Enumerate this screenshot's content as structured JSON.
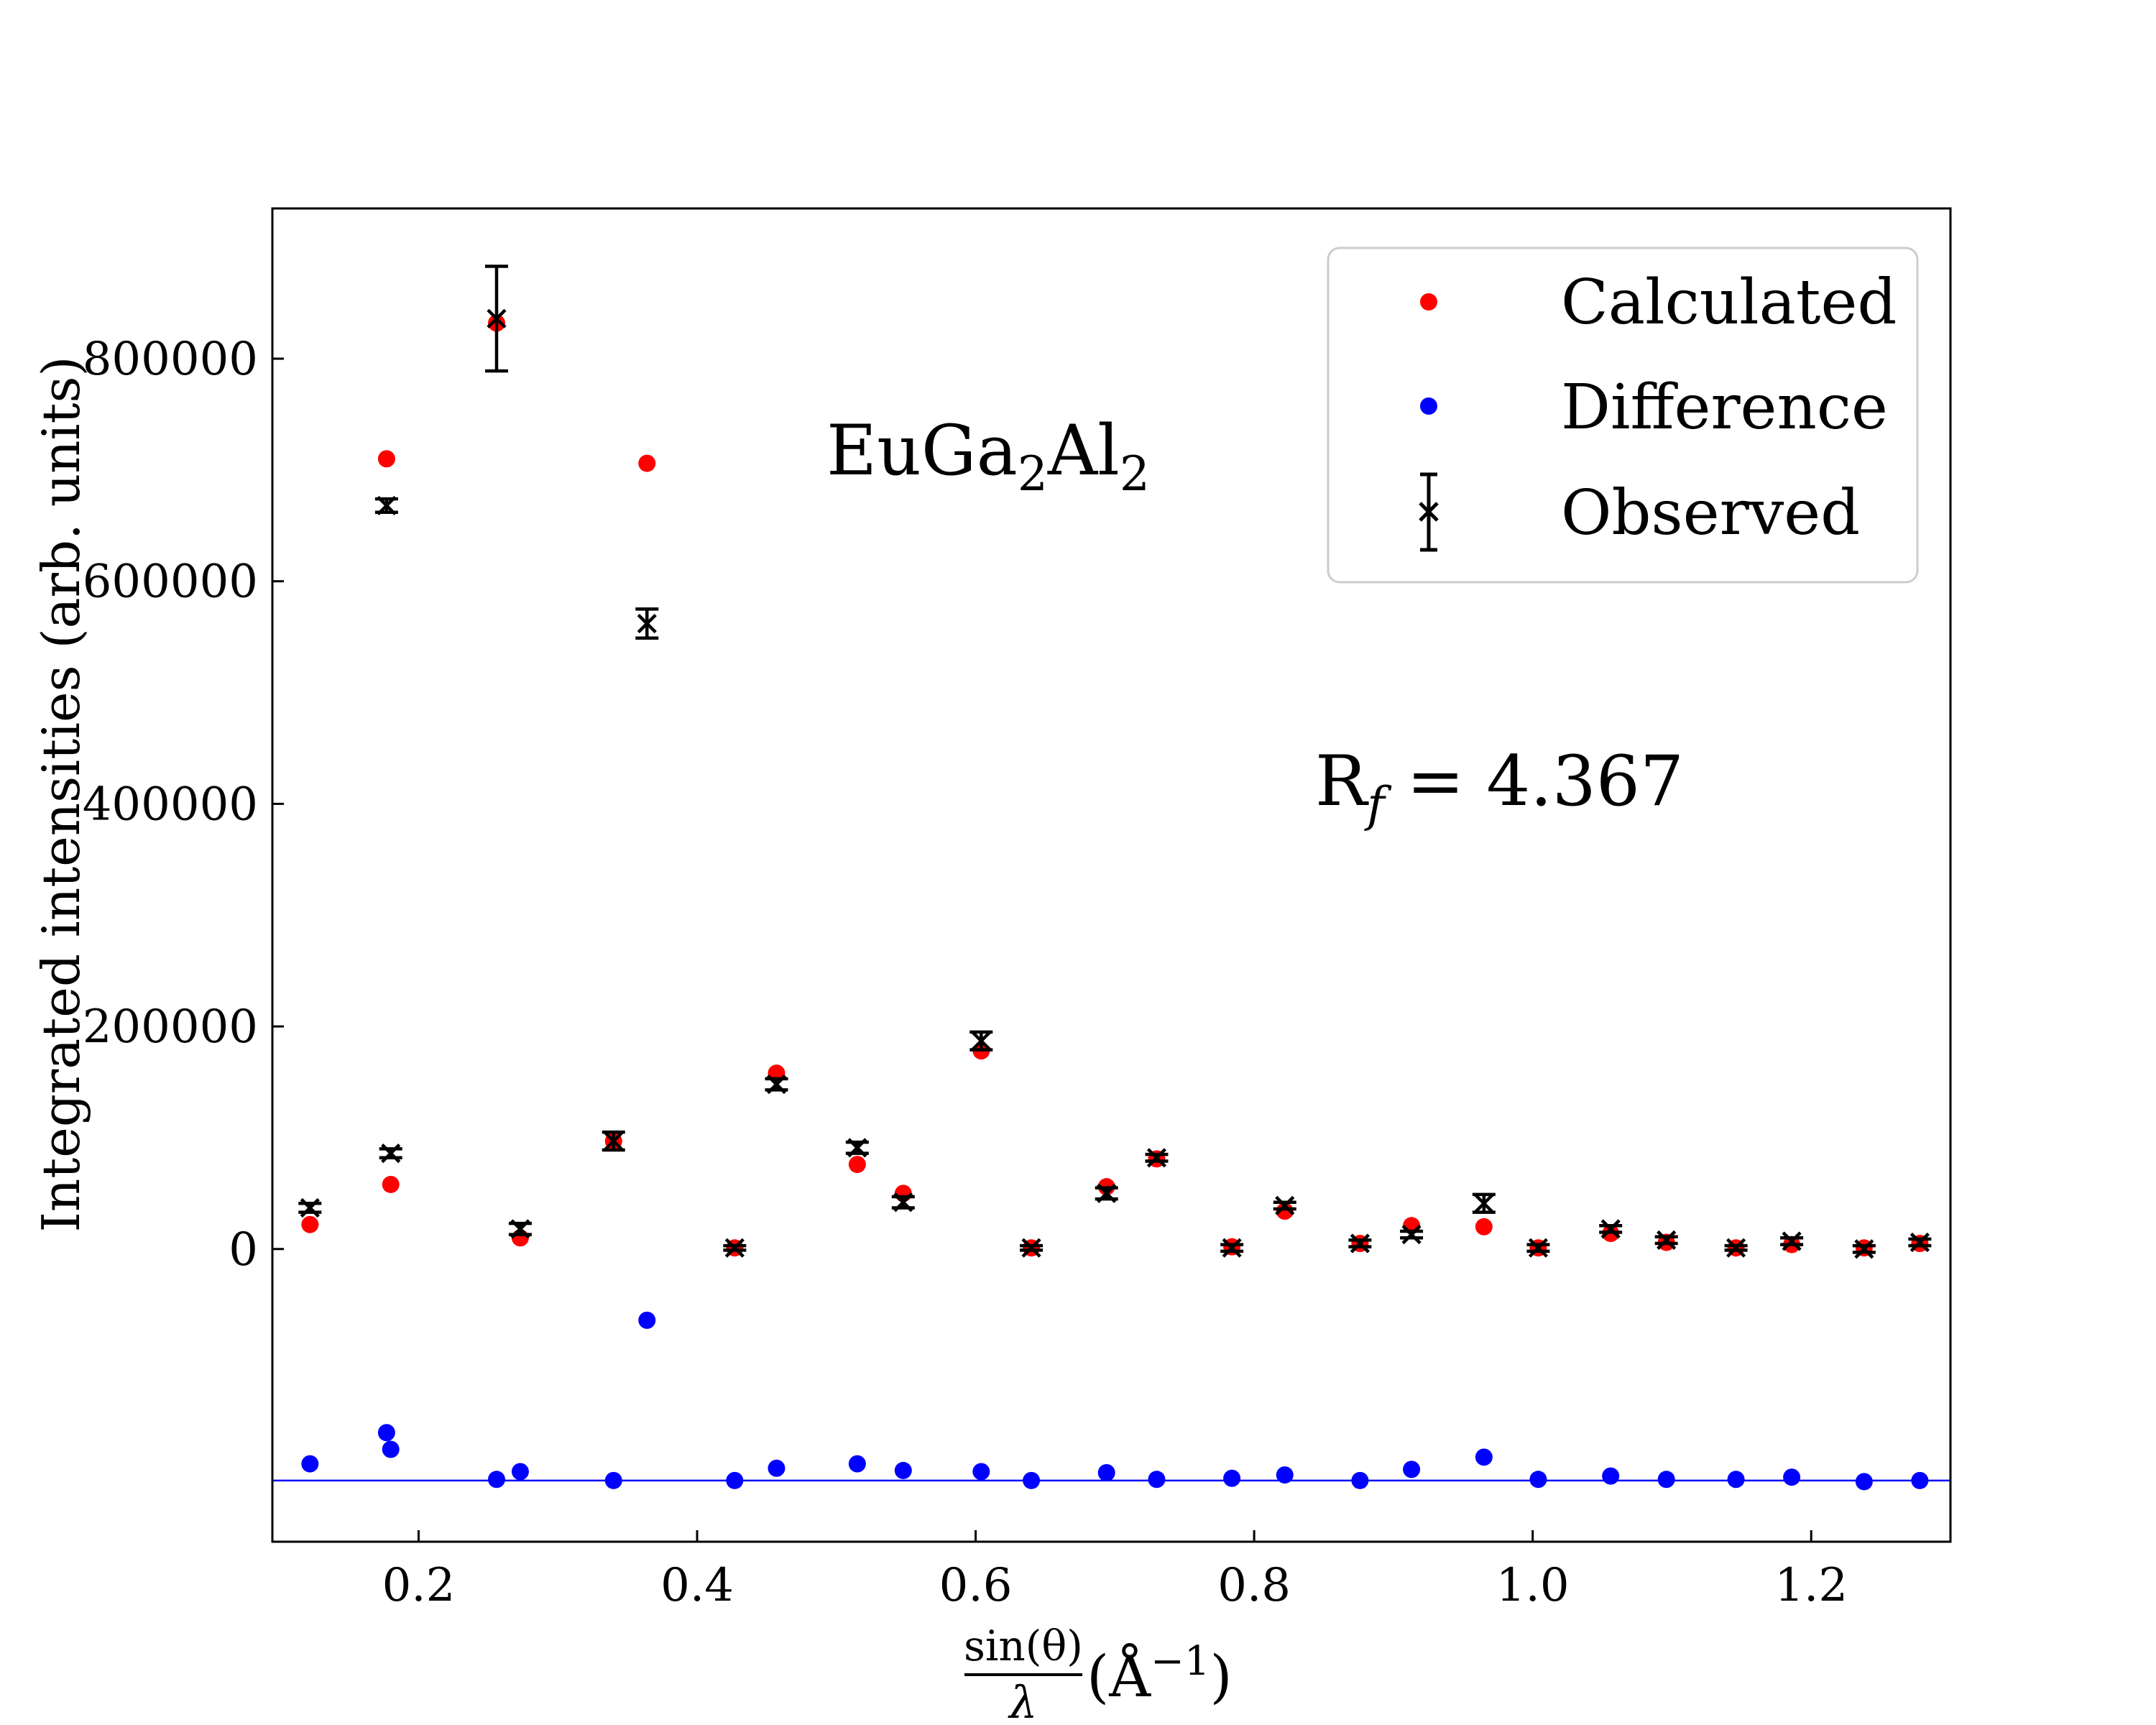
{
  "chart_data": {
    "type": "scatter",
    "title": "",
    "xlabel": {
      "fraction_numerator": "sin(θ)",
      "fraction_denominator": "λ",
      "unit_open": "(Å",
      "unit_exp": "−1",
      "unit_close": ")"
    },
    "ylabel": "Integrated intensities (arb. units)",
    "xlim": [
      0.095,
      1.3
    ],
    "ylim": [
      -263000,
      935000
    ],
    "xticks": [
      0.2,
      0.4,
      0.6,
      0.8,
      1.0,
      1.2
    ],
    "xtick_labels": [
      "0.2",
      "0.4",
      "0.6",
      "0.8",
      "1.0",
      "1.2"
    ],
    "yticks": [
      0,
      200000,
      400000,
      600000,
      800000
    ],
    "ytick_labels": [
      "0",
      "200000",
      "400000",
      "600000",
      "800000"
    ],
    "grid": false,
    "legend_position": "top-right",
    "colors": {
      "calculated": "#ff0000",
      "difference": "#0000ff",
      "observed": "#000000",
      "baseline": "#0000ff"
    },
    "series": [
      {
        "name": "Calculated",
        "marker": "circle",
        "points": [
          [
            0.122,
            22000
          ],
          [
            0.177,
            710000
          ],
          [
            0.18,
            58000
          ],
          [
            0.256,
            832000
          ],
          [
            0.273,
            10000
          ],
          [
            0.34,
            97000
          ],
          [
            0.364,
            706000
          ],
          [
            0.427,
            1000
          ],
          [
            0.457,
            158000
          ],
          [
            0.515,
            76000
          ],
          [
            0.548,
            50000
          ],
          [
            0.604,
            178000
          ],
          [
            0.64,
            1000
          ],
          [
            0.694,
            56000
          ],
          [
            0.73,
            81000
          ],
          [
            0.784,
            2000
          ],
          [
            0.822,
            34000
          ],
          [
            0.876,
            5000
          ],
          [
            0.913,
            21000
          ],
          [
            0.965,
            20000
          ],
          [
            1.004,
            1000
          ],
          [
            1.056,
            14000
          ],
          [
            1.096,
            6000
          ],
          [
            1.146,
            1000
          ],
          [
            1.186,
            4000
          ],
          [
            1.238,
            1000
          ],
          [
            1.278,
            5000
          ]
        ]
      },
      {
        "name": "Difference",
        "marker": "circle",
        "points": [
          [
            0.122,
            -193000
          ],
          [
            0.177,
            -165000
          ],
          [
            0.18,
            -180000
          ],
          [
            0.256,
            -207000
          ],
          [
            0.273,
            -200000
          ],
          [
            0.34,
            -208000
          ],
          [
            0.364,
            -64000
          ],
          [
            0.427,
            -208000
          ],
          [
            0.457,
            -197000
          ],
          [
            0.515,
            -193000
          ],
          [
            0.548,
            -199000
          ],
          [
            0.604,
            -200000
          ],
          [
            0.64,
            -208000
          ],
          [
            0.694,
            -201000
          ],
          [
            0.73,
            -207000
          ],
          [
            0.784,
            -206000
          ],
          [
            0.822,
            -203000
          ],
          [
            0.876,
            -208000
          ],
          [
            0.913,
            -198000
          ],
          [
            0.965,
            -187000
          ],
          [
            1.004,
            -207000
          ],
          [
            1.056,
            -204000
          ],
          [
            1.096,
            -207000
          ],
          [
            1.146,
            -207000
          ],
          [
            1.186,
            -205000
          ],
          [
            1.238,
            -209000
          ],
          [
            1.278,
            -208000
          ]
        ]
      },
      {
        "name": "Observed",
        "marker": "x-errorbar",
        "points": [
          [
            0.122,
            37000,
            4000
          ],
          [
            0.177,
            668000,
            6000
          ],
          [
            0.18,
            86000,
            4000
          ],
          [
            0.256,
            836000,
            47000
          ],
          [
            0.273,
            18000,
            5000
          ],
          [
            0.34,
            97000,
            8000
          ],
          [
            0.364,
            562000,
            13000
          ],
          [
            0.427,
            1000,
            2000
          ],
          [
            0.457,
            148000,
            5000
          ],
          [
            0.515,
            91000,
            5000
          ],
          [
            0.548,
            42000,
            5000
          ],
          [
            0.604,
            187000,
            8000
          ],
          [
            0.64,
            1000,
            2000
          ],
          [
            0.694,
            50000,
            5000
          ],
          [
            0.73,
            82000,
            3000
          ],
          [
            0.784,
            1000,
            3000
          ],
          [
            0.822,
            39000,
            3000
          ],
          [
            0.876,
            5000,
            3000
          ],
          [
            0.913,
            13000,
            3000
          ],
          [
            0.965,
            41000,
            8000
          ],
          [
            1.004,
            1000,
            3000
          ],
          [
            1.056,
            18000,
            3000
          ],
          [
            1.096,
            8000,
            3000
          ],
          [
            1.146,
            1000,
            2000
          ],
          [
            1.186,
            7000,
            3000
          ],
          [
            1.238,
            0,
            3000
          ],
          [
            1.278,
            6000,
            3000
          ]
        ]
      }
    ],
    "baseline_y": -208000,
    "annotations": {
      "compound": {
        "base1": "EuGa",
        "sub1": "2",
        "base2": "Al",
        "sub2": "2"
      },
      "rf": {
        "prefix": "R",
        "sub": "f",
        "rest": " = 4.367"
      }
    }
  }
}
